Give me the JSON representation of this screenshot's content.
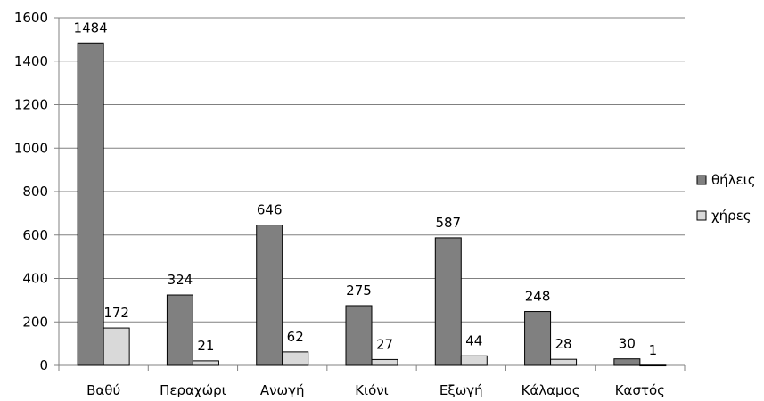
{
  "chart_data": {
    "type": "bar",
    "title": "",
    "xlabel": "",
    "ylabel": "",
    "categories": [
      "Βαθύ",
      "Περαχώρι",
      "Ανωγή",
      "Κιόνι",
      "Εξωγή",
      "Κάλαμος",
      "Καστός"
    ],
    "series": [
      {
        "name": "θήλεις",
        "color": "#808080",
        "values": [
          1484,
          324,
          646,
          275,
          587,
          248,
          30
        ],
        "labels": [
          "1484",
          "324",
          "646",
          "275",
          "587",
          "248",
          "30"
        ]
      },
      {
        "name": "χήρες",
        "color": "#d9d9d9",
        "values": [
          172,
          21,
          62,
          27,
          44,
          28,
          1
        ],
        "labels": [
          "172",
          "21",
          "62",
          "27",
          "44",
          "28",
          "1"
        ]
      }
    ],
    "ylim": [
      0,
      1600
    ],
    "yticks": [
      0,
      200,
      400,
      600,
      800,
      1000,
      1200,
      1400,
      1600
    ],
    "ytick_labels": [
      "0",
      "200",
      "400",
      "600",
      "800",
      "1000",
      "1200",
      "1400",
      "1600"
    ],
    "grid": true,
    "legend_position": "right"
  }
}
